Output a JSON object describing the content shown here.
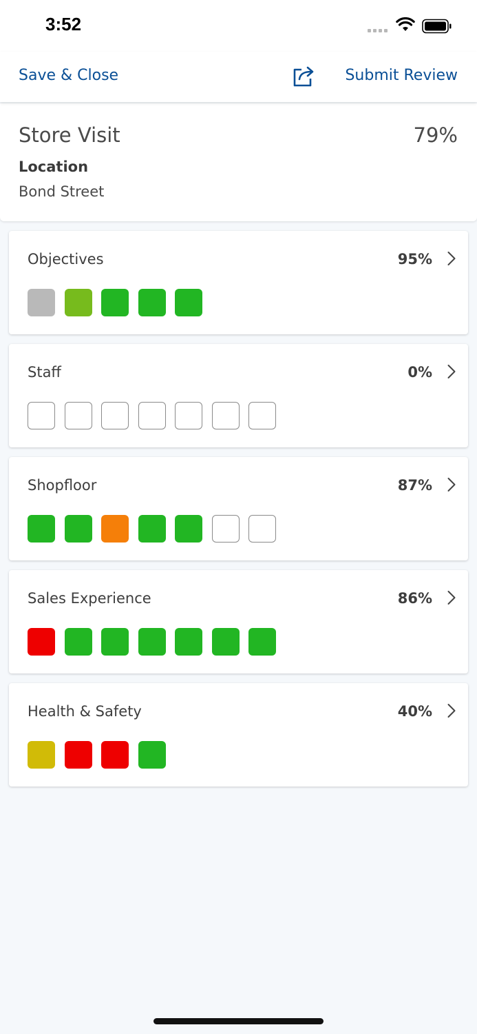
{
  "status_bar": {
    "time": "3:52",
    "signal_icon": "cellular-signal-icon",
    "wifi_icon": "wifi-icon",
    "battery_icon": "battery-icon"
  },
  "nav": {
    "save_close_label": "Save & Close",
    "share_icon": "share-icon",
    "submit_label": "Submit Review"
  },
  "visit": {
    "title": "Store Visit",
    "score": "79%",
    "location_label": "Location",
    "location_value": "Bond Street"
  },
  "colors": {
    "link": "#0a4f96",
    "grey": "#b9b9b9",
    "light_green": "#77bb1d",
    "green": "#22b623",
    "orange": "#f57f09",
    "red": "#ee0000",
    "yellow": "#d1bb07",
    "empty": "#ffffff"
  },
  "sections": [
    {
      "title": "Objectives",
      "score": "95%",
      "items": [
        "grey",
        "light_green",
        "green",
        "green",
        "green"
      ]
    },
    {
      "title": "Staff",
      "score": "0%",
      "items": [
        "empty",
        "empty",
        "empty",
        "empty",
        "empty",
        "empty",
        "empty"
      ]
    },
    {
      "title": "Shopfloor",
      "score": "87%",
      "items": [
        "green",
        "green",
        "orange",
        "green",
        "green",
        "empty",
        "empty"
      ]
    },
    {
      "title": "Sales Experience",
      "score": "86%",
      "items": [
        "red",
        "green",
        "green",
        "green",
        "green",
        "green",
        "green"
      ]
    },
    {
      "title": "Health & Safety",
      "score": "40%",
      "items": [
        "yellow",
        "red",
        "red",
        "green"
      ]
    }
  ]
}
